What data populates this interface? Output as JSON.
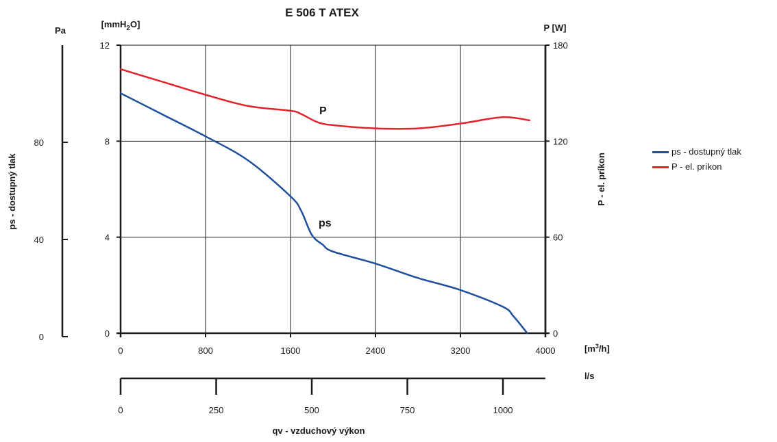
{
  "chart_data": {
    "type": "line",
    "title": "E 506 T ATEX",
    "x_axis": {
      "unit": "[m³/h]",
      "range": [
        0,
        4000
      ],
      "ticks": [
        "0",
        "800",
        "1600",
        "2400",
        "3200",
        "4000"
      ]
    },
    "x_axis_secondary": {
      "unit": "l/s",
      "range": [
        0,
        1111
      ],
      "ticks": [
        "0",
        "250",
        "500",
        "750",
        "1000"
      ],
      "label": "qv - vzduchový výkon"
    },
    "y_axis_left": {
      "unit": "[mmH2O]",
      "range": [
        0,
        12
      ],
      "ticks": [
        "0",
        "4",
        "8",
        "12"
      ]
    },
    "y_axis_left_outer": {
      "unit": "Pa",
      "range": [
        0,
        120
      ],
      "ticks": [
        "0",
        "40",
        "80"
      ],
      "label": "ps - dostupný tlak"
    },
    "y_axis_right": {
      "unit": "P [W]",
      "range": [
        0,
        180
      ],
      "ticks": [
        "0",
        "60",
        "120",
        "180"
      ],
      "label": "P - el. príkon"
    },
    "grid": true,
    "legend_position": "right",
    "series": [
      {
        "name": "ps - dostupný tlak",
        "curve_label": "ps",
        "axis": "left",
        "color": "#1f4e9b",
        "points": [
          [
            0,
            10.0
          ],
          [
            400,
            9.1
          ],
          [
            800,
            8.2
          ],
          [
            1200,
            7.2
          ],
          [
            1600,
            5.7
          ],
          [
            1700,
            5.1
          ],
          [
            1800,
            4.1
          ],
          [
            1900,
            3.7
          ],
          [
            2000,
            3.4
          ],
          [
            2400,
            2.9
          ],
          [
            2800,
            2.3
          ],
          [
            3200,
            1.8
          ],
          [
            3600,
            1.1
          ],
          [
            3700,
            0.7
          ],
          [
            3830,
            0.0
          ]
        ]
      },
      {
        "name": "P - el. príkon",
        "curve_label": "P",
        "axis": "right",
        "color": "#e2232a",
        "points": [
          [
            0,
            165
          ],
          [
            400,
            157
          ],
          [
            800,
            149
          ],
          [
            1200,
            142
          ],
          [
            1600,
            139
          ],
          [
            1700,
            137
          ],
          [
            1850,
            132
          ],
          [
            2000,
            130
          ],
          [
            2400,
            128
          ],
          [
            2800,
            128
          ],
          [
            3200,
            131
          ],
          [
            3600,
            135
          ],
          [
            3850,
            133
          ]
        ]
      }
    ]
  }
}
